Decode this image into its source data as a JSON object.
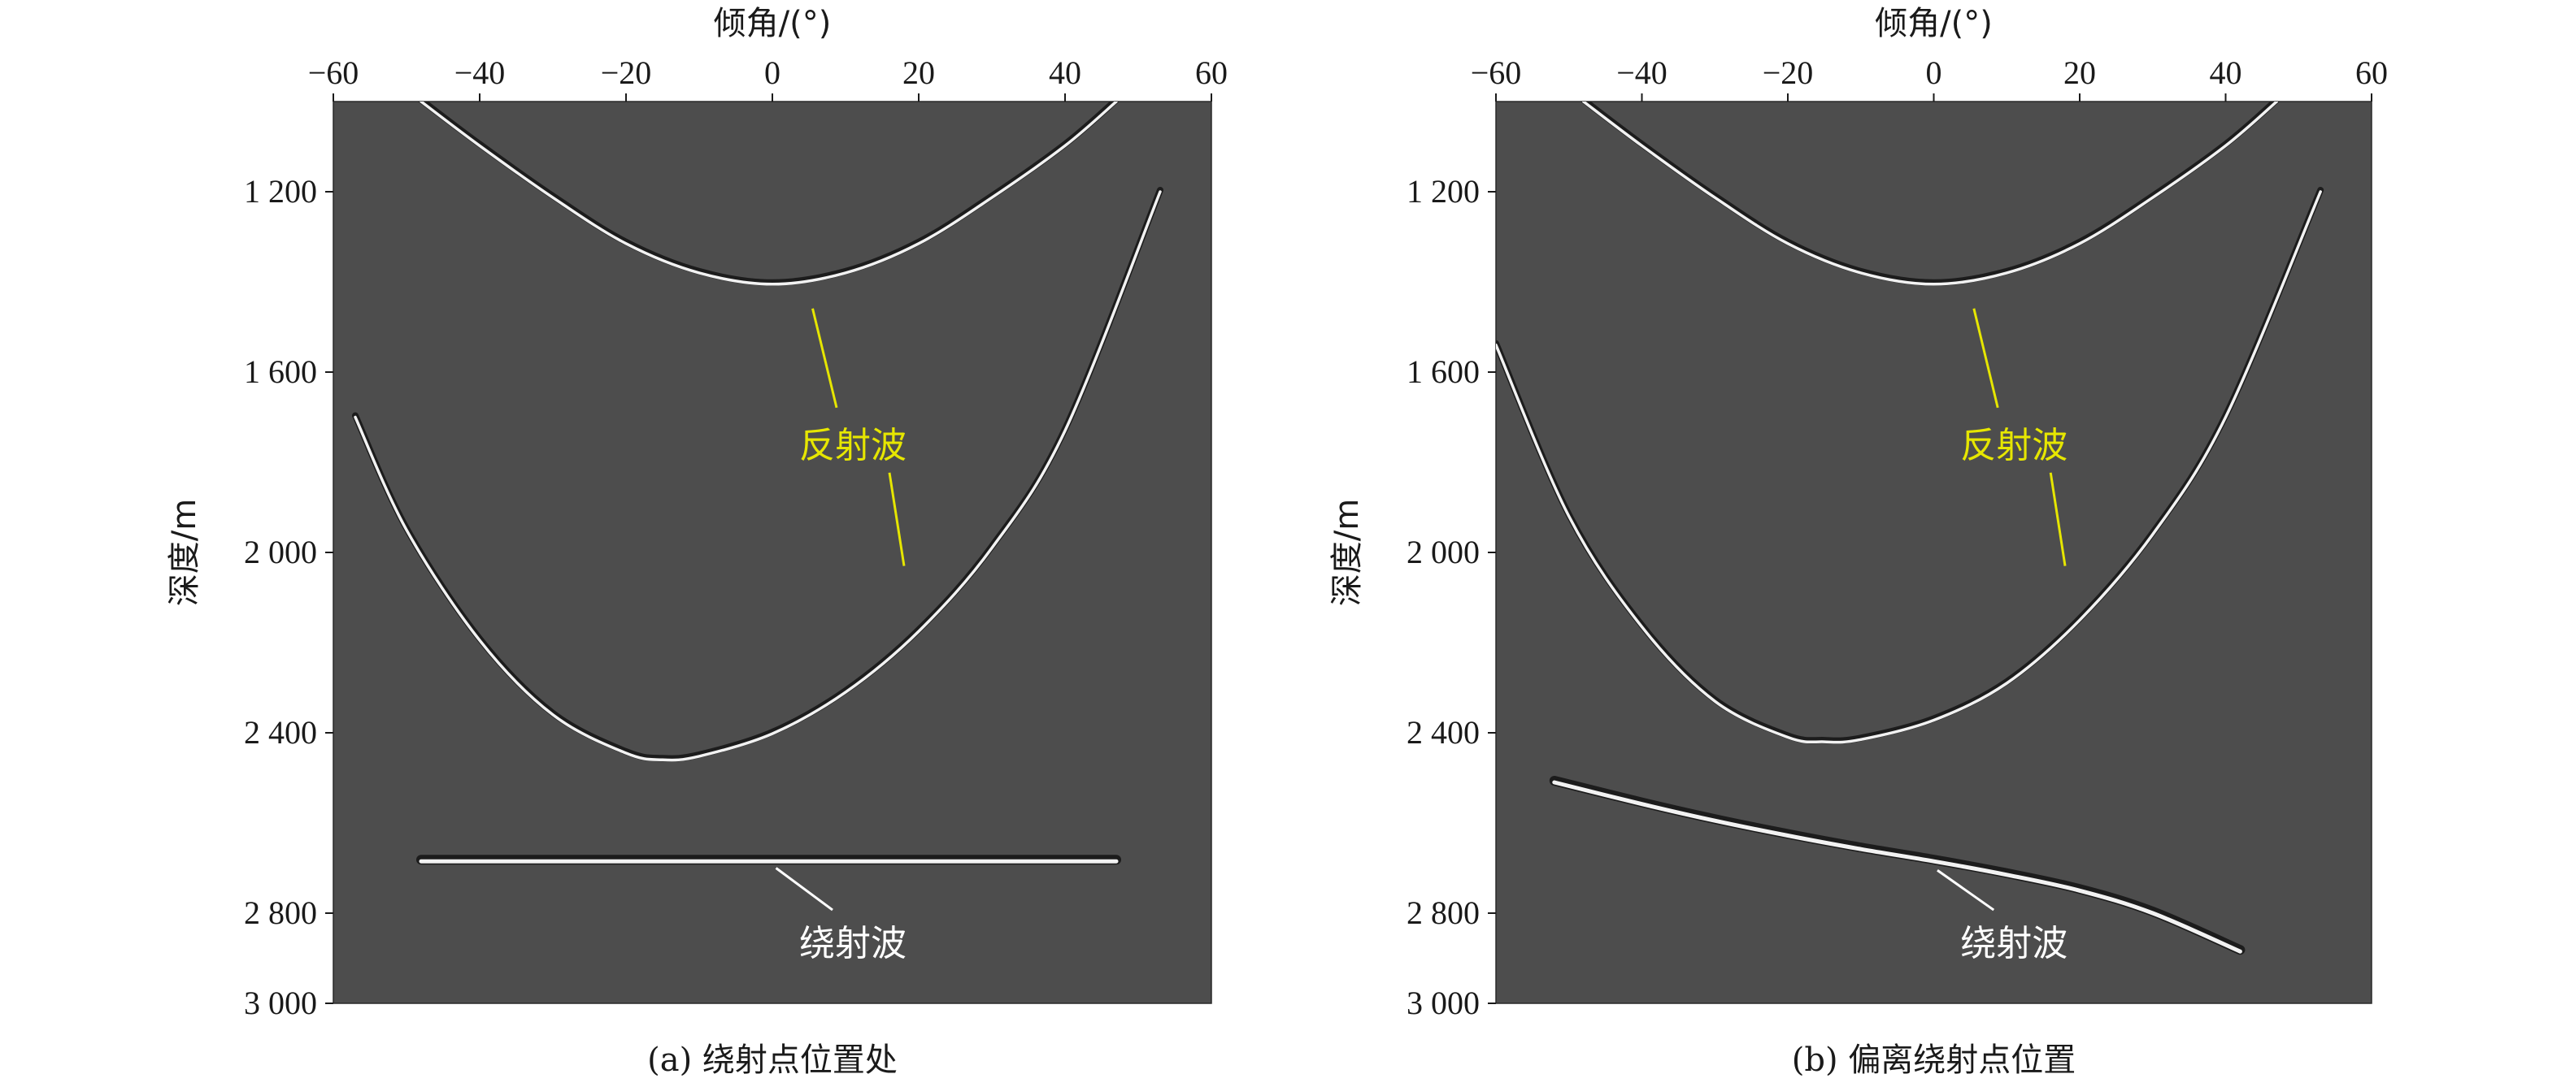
{
  "chart_data": [
    {
      "type": "line",
      "caption": "(a) 绕射点位置处",
      "xlabel": "倾角/(°)",
      "ylabel": "深度/m",
      "xlim": [
        -60,
        60
      ],
      "ylim": [
        1000,
        3000
      ],
      "y_inverted": true,
      "x_ticks": [
        -60,
        -40,
        -20,
        0,
        20,
        40,
        60
      ],
      "x_tick_labels": [
        "−60",
        "−40",
        "−20",
        "0",
        "20",
        "40",
        "60"
      ],
      "y_ticks": [
        1200,
        1600,
        2000,
        2400,
        2800,
        3000
      ],
      "y_tick_labels": [
        "1 200",
        "1 600",
        "2 000",
        "2 400",
        "2 800",
        "3 000"
      ],
      "background": "#4d4d4d",
      "series": [
        {
          "role": "reflection-upper",
          "x": [
            -48,
            -40,
            -30,
            -20,
            -10,
            0,
            10,
            20,
            30,
            40,
            47
          ],
          "y": [
            1000,
            1098,
            1213,
            1315,
            1380,
            1405,
            1380,
            1315,
            1213,
            1098,
            1000
          ]
        },
        {
          "role": "reflection-lower",
          "x": [
            -57,
            -50,
            -40,
            -30,
            -20,
            -15,
            -10,
            0,
            10,
            20,
            30,
            40,
            53
          ],
          "y": [
            1700,
            1950,
            2195,
            2360,
            2445,
            2460,
            2452,
            2402,
            2310,
            2175,
            1990,
            1730,
            1200
          ]
        },
        {
          "role": "diffraction",
          "x": [
            -48,
            -30,
            -15,
            0,
            15,
            30,
            47
          ],
          "y": [
            2685,
            2685,
            2685,
            2685,
            2685,
            2685,
            2685
          ]
        }
      ],
      "annotations": [
        {
          "text": "反射波",
          "color": "#e6e600",
          "x": 11,
          "y": 1760
        },
        {
          "text": "绕射波",
          "color": "#ffffff",
          "x": 11,
          "y": 2865
        }
      ]
    },
    {
      "type": "line",
      "caption": "(b) 偏离绕射点位置",
      "xlabel": "倾角/(°)",
      "ylabel": "深度/m",
      "xlim": [
        -60,
        60
      ],
      "ylim": [
        1000,
        3000
      ],
      "y_inverted": true,
      "x_ticks": [
        -60,
        -40,
        -20,
        0,
        20,
        40,
        60
      ],
      "x_tick_labels": [
        "−60",
        "−40",
        "−20",
        "0",
        "20",
        "40",
        "60"
      ],
      "y_ticks": [
        1200,
        1600,
        2000,
        2400,
        2800,
        3000
      ],
      "y_tick_labels": [
        "1 200",
        "1 600",
        "2 000",
        "2 400",
        "2 800",
        "3 000"
      ],
      "background": "#4d4d4d",
      "series": [
        {
          "role": "reflection-upper",
          "x": [
            -48,
            -40,
            -30,
            -20,
            -10,
            0,
            10,
            20,
            30,
            40,
            47
          ],
          "y": [
            1000,
            1098,
            1213,
            1315,
            1380,
            1405,
            1380,
            1315,
            1213,
            1098,
            1000
          ]
        },
        {
          "role": "reflection-lower",
          "x": [
            -60,
            -50,
            -40,
            -30,
            -20,
            -15,
            -10,
            0,
            10,
            20,
            30,
            40,
            53
          ],
          "y": [
            1540,
            1920,
            2165,
            2330,
            2410,
            2420,
            2415,
            2372,
            2290,
            2150,
            1960,
            1700,
            1200
          ]
        },
        {
          "role": "diffraction",
          "x": [
            -52,
            -40,
            -30,
            -20,
            -10,
            0,
            10,
            20,
            30,
            42
          ],
          "y": [
            2510,
            2558,
            2595,
            2628,
            2658,
            2685,
            2715,
            2750,
            2800,
            2885
          ]
        }
      ],
      "annotations": [
        {
          "text": "反射波",
          "color": "#e6e600",
          "x": 11,
          "y": 1760
        },
        {
          "text": "绕射波",
          "color": "#ffffff",
          "x": 11,
          "y": 2865
        }
      ]
    }
  ],
  "colors": {
    "plot_bg": "#4d4d4d",
    "wavelet_light": "#f2f2f2",
    "wavelet_dark": "#1c1c1c",
    "reflection_label": "#e6e600",
    "diffraction_label": "#ffffff"
  }
}
